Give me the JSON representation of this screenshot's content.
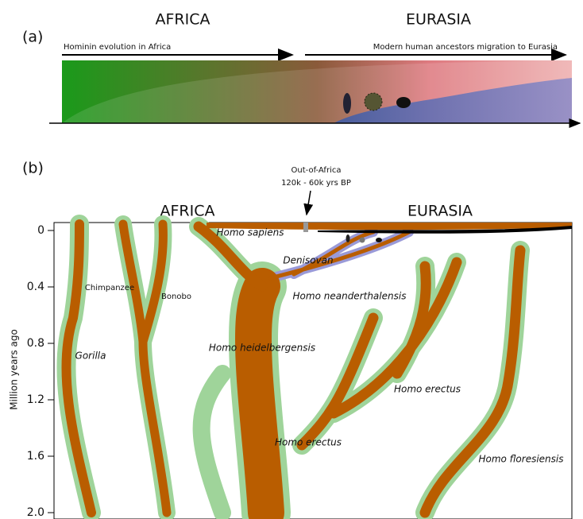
{
  "panel_a": {
    "label": "(a)",
    "region_left": "AFRICA",
    "region_right": "EURASIA",
    "arrow_left": "Hominin evolution in Africa",
    "arrow_right": "Modern human ancestors migration to Eurasia"
  },
  "panel_b": {
    "label": "(b)",
    "region_left": "AFRICA",
    "region_right": "EURASIA",
    "annotation": {
      "title": "Out-of-Africa",
      "subtitle": "120k - 60k yrs BP"
    },
    "y_axis": {
      "label": "Million years ago",
      "ticks": [
        "0",
        "0.4",
        "0.8",
        "1.2",
        "1.6",
        "2.0"
      ]
    },
    "species": [
      "Homo sapiens",
      "Denisovan",
      "Chimpanzee",
      "Bonobo",
      "Homo neanderthalensis",
      "Gorilla",
      "Homo heidelbergensis",
      "Homo erectus",
      "Homo erectus",
      "Homo floresiensis"
    ]
  }
}
